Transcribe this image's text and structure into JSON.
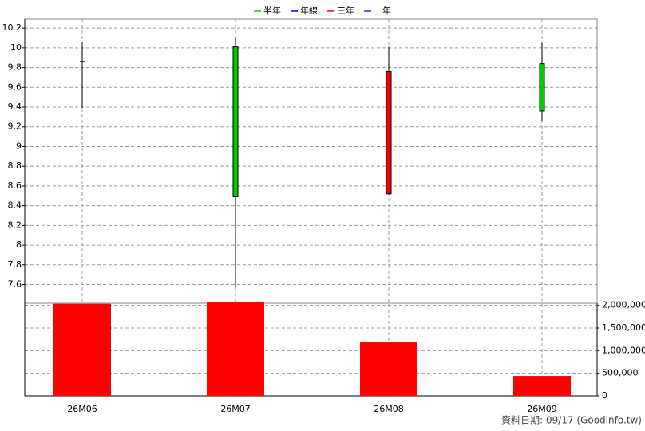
{
  "chart_data": {
    "type": "candlestick",
    "legend": [
      {
        "name": "半年",
        "color": "#00cc00"
      },
      {
        "name": "年線",
        "color": "#0000ff"
      },
      {
        "name": "三年",
        "color": "#ff0000"
      },
      {
        "name": "十年",
        "color": "#8000ff"
      }
    ],
    "categories": [
      "26M06",
      "26M07",
      "26M08",
      "26M09"
    ],
    "open": [
      9.86,
      10.01,
      8.52,
      9.84
    ],
    "high": [
      10.06,
      10.11,
      10.01,
      10.05
    ],
    "low": [
      9.39,
      7.58,
      8.52,
      9.26
    ],
    "close": [
      9.86,
      8.49,
      9.76,
      9.36
    ],
    "up_color": "#ff0000",
    "down_color": "#00cc00",
    "ylim": [
      7.41,
      10.29
    ],
    "yticks": [
      7.6,
      7.8,
      8,
      8.2,
      8.4,
      8.6,
      8.8,
      9,
      9.2,
      9.4,
      9.6,
      9.8,
      10,
      10.2
    ],
    "volume": [
      2035000,
      2070000,
      1190000,
      440000
    ],
    "volume_color": "#ff0000",
    "y2lim": [
      0,
      2100000
    ],
    "y2ticks": [
      0,
      {
        "value": 500000,
        "label": "500,000"
      },
      {
        "value": 1000000,
        "label": "1,000,000"
      },
      {
        "value": 1500000,
        "label": "1,500,000"
      },
      {
        "value": 2000000,
        "label": "2,000,000"
      }
    ],
    "grid": true,
    "footnote": "資料日期: 09/17  (Goodinfo.tw)"
  }
}
